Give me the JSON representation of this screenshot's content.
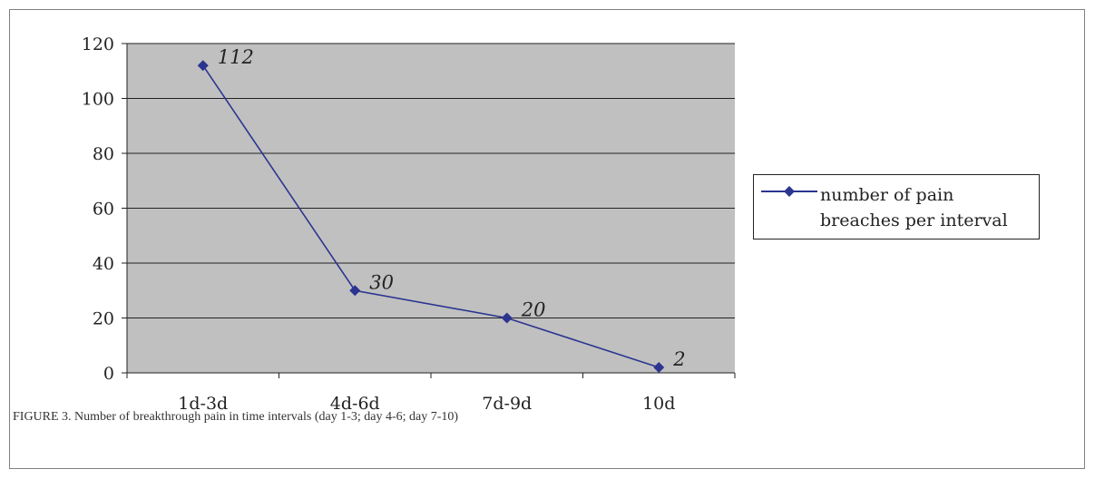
{
  "chart_data": {
    "type": "line",
    "categories": [
      "1d-3d",
      "4d-6d",
      "7d-9d",
      "10d"
    ],
    "series": [
      {
        "name": "number of pain breaches per interval",
        "values": [
          112,
          30,
          20,
          2
        ]
      }
    ],
    "data_labels": [
      "112",
      "30",
      "20",
      "2"
    ],
    "xlabel": "",
    "ylabel": "",
    "ylim": [
      0,
      120
    ],
    "yticks": [
      0,
      20,
      40,
      60,
      80,
      100,
      120
    ],
    "grid": true,
    "legend_position": "right",
    "colors": {
      "series": "#2b3590",
      "plot_background": "#c0c0c0",
      "gridline": "#222222"
    }
  },
  "legend": {
    "label": "number of pain breaches per interval"
  },
  "caption": "FIGURE 3.  Number of breakthrough pain in time intervals (day 1-3; day 4-6; day 7-10)"
}
